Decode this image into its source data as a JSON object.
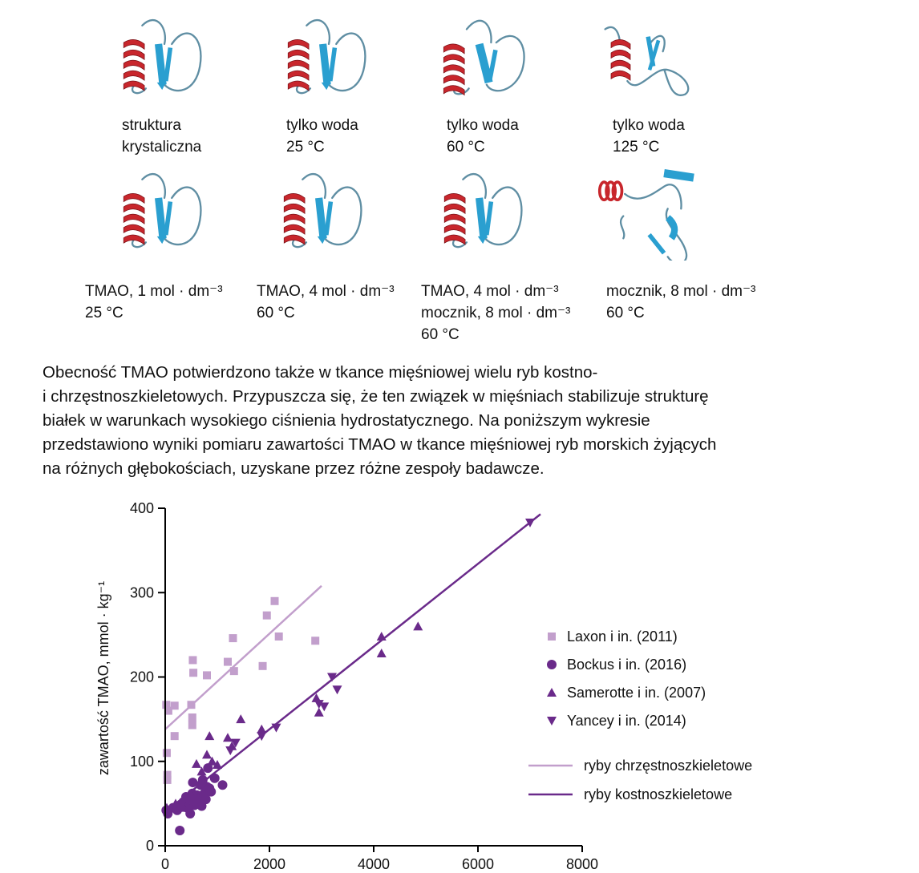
{
  "structures": [
    {
      "line1": "struktura",
      "line2": "krystaliczna",
      "line3": "",
      "state": "folded"
    },
    {
      "line1": "tylko woda",
      "line2": "25 °C",
      "line3": "",
      "state": "folded"
    },
    {
      "line1": "tylko woda",
      "line2": "60 °C",
      "line3": "",
      "state": "partial"
    },
    {
      "line1": "tylko woda",
      "line2": "125 °C",
      "line3": "",
      "state": "unfolded"
    },
    {
      "line1": "TMAO, 1 mol · dm⁻³",
      "line2": "25 °C",
      "line3": "",
      "state": "folded"
    },
    {
      "line1": "TMAO, 4 mol · dm⁻³",
      "line2": "60 °C",
      "line3": "",
      "state": "folded"
    },
    {
      "line1": "TMAO, 4 mol · dm⁻³",
      "line2": "mocznik, 8 mol · dm⁻³",
      "line3": "60 °C",
      "state": "folded"
    },
    {
      "line1": "mocznik, 8 mol · dm⁻³",
      "line2": "60 °C",
      "line3": "",
      "state": "denatured"
    }
  ],
  "paragraph": {
    "line1": "Obecność TMAO potwierdzono także w tkance mięśniowej wielu ryb kostno-",
    "line2": "i chrzęstnoszkieletowych. Przypuszcza się, że ten związek w mięśniach stabilizuje strukturę",
    "line3": "białek w warunkach wysokiego ciśnienia hydrostatycznego. Na poniższym wykresie",
    "line4": "przedstawiono wyniki pomiaru zawartości TMAO w tkance mięśniowej ryb morskich żyjących",
    "line5": "na różnych głębokościach, uzyskane przez różne zespoły badawcze."
  },
  "colors": {
    "helix": "#c8262c",
    "strand": "#2a9fd0",
    "loop": "#5f8ea3",
    "light_purple": "#c29fcc",
    "dark_purple": "#6a2a8a"
  },
  "chart_data": {
    "type": "scatter",
    "title": "",
    "xlabel": "",
    "ylabel": "zawartość TMAO, mmol · kg⁻¹",
    "xlim": [
      0,
      8000
    ],
    "ylim": [
      0,
      400
    ],
    "xticks": [
      0,
      2000,
      4000,
      6000,
      8000
    ],
    "yticks": [
      0,
      100,
      200,
      300,
      400
    ],
    "legend_position": "right",
    "series": [
      {
        "name": "Laxon i in. (2011)",
        "marker": "square",
        "color": "#c29fcc",
        "points": [
          [
            20,
            167
          ],
          [
            60,
            160
          ],
          [
            30,
            110
          ],
          [
            40,
            84
          ],
          [
            40,
            78
          ],
          [
            180,
            166
          ],
          [
            180,
            130
          ],
          [
            500,
            167
          ],
          [
            520,
            152
          ],
          [
            520,
            143
          ],
          [
            530,
            220
          ],
          [
            540,
            205
          ],
          [
            800,
            202
          ],
          [
            1200,
            218
          ],
          [
            1300,
            246
          ],
          [
            1320,
            207
          ],
          [
            1870,
            213
          ],
          [
            1950,
            273
          ],
          [
            2100,
            290
          ],
          [
            2180,
            248
          ],
          [
            2880,
            243
          ]
        ]
      },
      {
        "name": "Bockus i in. (2016)",
        "marker": "circle",
        "color": "#6a2a8a",
        "points": [
          [
            20,
            42
          ],
          [
            50,
            38
          ],
          [
            150,
            45
          ],
          [
            230,
            42
          ],
          [
            280,
            18
          ],
          [
            300,
            48
          ],
          [
            350,
            52
          ],
          [
            400,
            58
          ],
          [
            420,
            45
          ],
          [
            450,
            55
          ],
          [
            480,
            38
          ],
          [
            520,
            62
          ],
          [
            530,
            75
          ],
          [
            560,
            48
          ],
          [
            600,
            52
          ],
          [
            610,
            60
          ],
          [
            650,
            55
          ],
          [
            680,
            72
          ],
          [
            700,
            47
          ],
          [
            720,
            78
          ],
          [
            750,
            62
          ],
          [
            780,
            55
          ],
          [
            800,
            70
          ],
          [
            820,
            92
          ],
          [
            850,
            68
          ],
          [
            880,
            64
          ],
          [
            950,
            80
          ],
          [
            1100,
            72
          ]
        ]
      },
      {
        "name": "Samerotte i in. (2007)",
        "marker": "triangle-up",
        "color": "#6a2a8a",
        "points": [
          [
            30,
            45
          ],
          [
            200,
            50
          ],
          [
            350,
            45
          ],
          [
            500,
            60
          ],
          [
            600,
            97
          ],
          [
            700,
            88
          ],
          [
            800,
            108
          ],
          [
            850,
            130
          ],
          [
            900,
            100
          ],
          [
            1000,
            96
          ],
          [
            1200,
            128
          ],
          [
            1280,
            118
          ],
          [
            1450,
            150
          ],
          [
            1850,
            138
          ],
          [
            2900,
            175
          ],
          [
            2950,
            158
          ],
          [
            4150,
            248
          ],
          [
            4150,
            228
          ],
          [
            4850,
            260
          ]
        ]
      },
      {
        "name": "Yancey i in. (2014)",
        "marker": "triangle-down",
        "color": "#6a2a8a",
        "points": [
          [
            1250,
            113
          ],
          [
            1350,
            122
          ],
          [
            1850,
            130
          ],
          [
            2130,
            140
          ],
          [
            2950,
            168
          ],
          [
            3050,
            165
          ],
          [
            3200,
            200
          ],
          [
            3300,
            185
          ],
          [
            7000,
            383
          ]
        ]
      }
    ],
    "trendlines": [
      {
        "name": "ryby chrzęstnoszkieletowe",
        "color": "#c29fcc",
        "x": [
          0,
          3000
        ],
        "y": [
          138,
          308
        ]
      },
      {
        "name": "ryby kostnoszkieletowe",
        "color": "#6a2a8a",
        "x": [
          0,
          7200
        ],
        "y": [
          40,
          393
        ]
      }
    ]
  }
}
